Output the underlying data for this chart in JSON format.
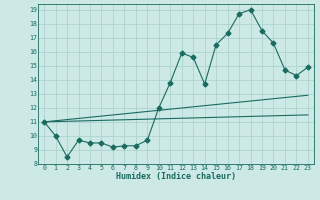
{
  "xlabel": "Humidex (Indice chaleur)",
  "bg_color": "#cce9e5",
  "grid_color": "#aed4cf",
  "line_color": "#1a6b60",
  "xlim": [
    -0.5,
    23.5
  ],
  "ylim": [
    8,
    19.4
  ],
  "xticks": [
    0,
    1,
    2,
    3,
    4,
    5,
    6,
    7,
    8,
    9,
    10,
    11,
    12,
    13,
    14,
    15,
    16,
    17,
    18,
    19,
    20,
    21,
    22,
    23
  ],
  "yticks": [
    8,
    9,
    10,
    11,
    12,
    13,
    14,
    15,
    16,
    17,
    18,
    19
  ],
  "series1_x": [
    0,
    1,
    2,
    3,
    4,
    5,
    6,
    7,
    8,
    9,
    10,
    11,
    12,
    13,
    14,
    15,
    16,
    17,
    18,
    19,
    20,
    21,
    22,
    23
  ],
  "series1_y": [
    11,
    10,
    8.5,
    9.7,
    9.5,
    9.5,
    9.2,
    9.3,
    9.3,
    9.7,
    12.0,
    13.8,
    15.9,
    15.6,
    13.7,
    16.5,
    17.3,
    18.7,
    19.0,
    17.5,
    16.6,
    14.7,
    14.3,
    14.9
  ],
  "series2_x": [
    0,
    23
  ],
  "series2_y": [
    11,
    12.9
  ],
  "series3_x": [
    0,
    23
  ],
  "series3_y": [
    11,
    11.5
  ],
  "markersize": 2.5,
  "linewidth": 0.8,
  "xlabel_fontsize": 6.0,
  "tick_fontsize": 4.8
}
